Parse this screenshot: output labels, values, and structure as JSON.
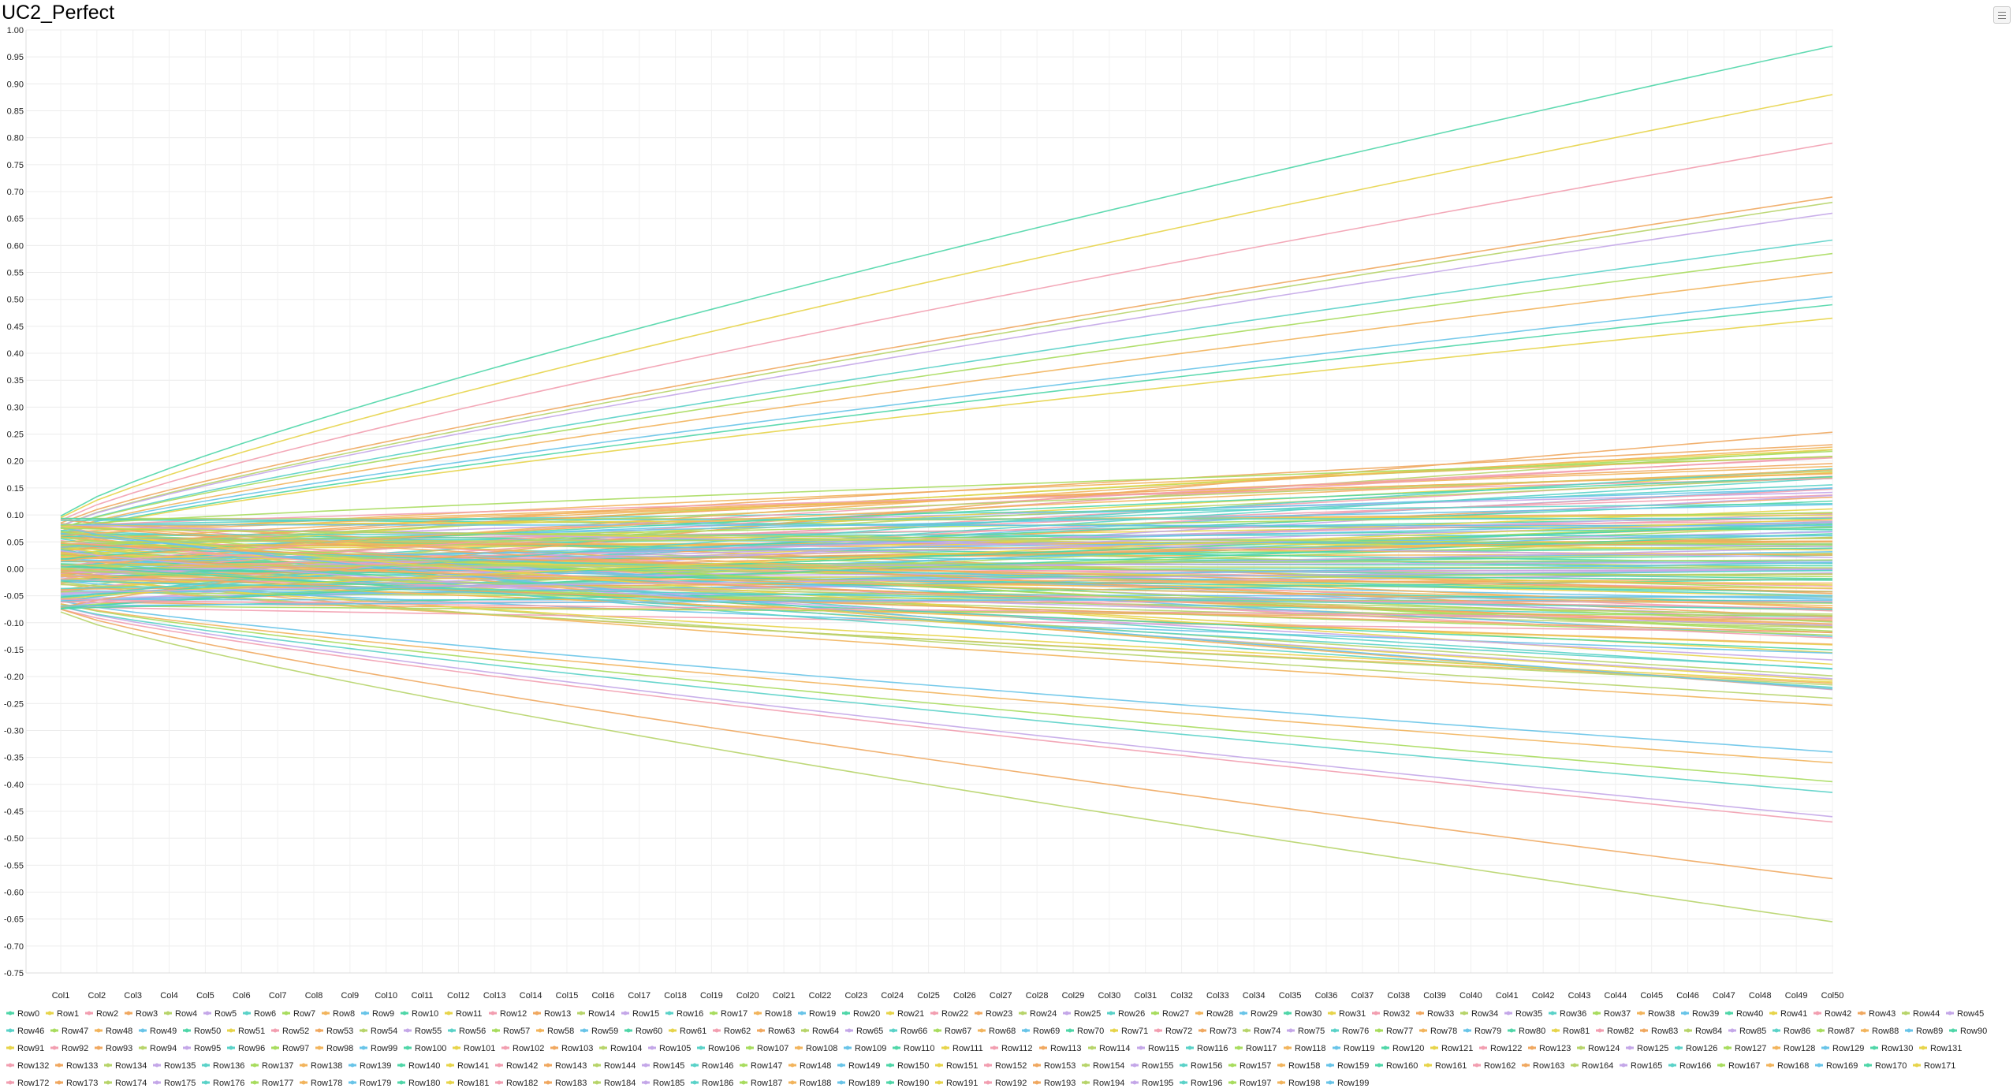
{
  "chart_data": {
    "type": "line",
    "title": "UC2_Perfect",
    "xlabel": "",
    "ylabel": "",
    "ylim": [
      -0.75,
      1.0
    ],
    "ytick_step": 0.05,
    "grid": true,
    "legend": "bottom",
    "x": [
      "Col1",
      "Col2",
      "Col3",
      "Col4",
      "Col5",
      "Col6",
      "Col7",
      "Col8",
      "Col9",
      "Col10",
      "Col11",
      "Col12",
      "Col13",
      "Col14",
      "Col15",
      "Col16",
      "Col17",
      "Col18",
      "Col19",
      "Col20",
      "Col21",
      "Col22",
      "Col23",
      "Col24",
      "Col25",
      "Col26",
      "Col27",
      "Col28",
      "Col29",
      "Col30",
      "Col31",
      "Col32",
      "Col33",
      "Col34",
      "Col35",
      "Col36",
      "Col37",
      "Col38",
      "Col39",
      "Col40",
      "Col41",
      "Col42",
      "Col43",
      "Col44",
      "Col45",
      "Col46",
      "Col47",
      "Col48",
      "Col49",
      "Col50"
    ],
    "series_count": 200,
    "series_name_prefix": "Row",
    "palette": [
      "#4fd6a8",
      "#e7d44a",
      "#f29eb0",
      "#f0a860",
      "#b7d46a",
      "#c4a7e8",
      "#5ad2c8",
      "#a8dc5e",
      "#f2b45c",
      "#68c4e8"
    ],
    "highlight_series": [
      {
        "name": "Row0",
        "start": 0.098,
        "end": 0.97
      },
      {
        "name": "Row1",
        "start": 0.095,
        "end": 0.88
      },
      {
        "name": "Row2",
        "start": 0.09,
        "end": 0.79
      },
      {
        "name": "Row3",
        "start": 0.085,
        "end": 0.69
      },
      {
        "name": "Row4",
        "start": 0.08,
        "end": 0.68
      },
      {
        "name": "Row5",
        "start": 0.08,
        "end": 0.66
      },
      {
        "name": "Row6",
        "start": 0.075,
        "end": 0.61
      },
      {
        "name": "Row7",
        "start": 0.075,
        "end": 0.585
      },
      {
        "name": "Row8",
        "start": 0.07,
        "end": 0.55
      },
      {
        "name": "Row9",
        "start": 0.07,
        "end": 0.505
      },
      {
        "name": "Row10",
        "start": 0.065,
        "end": 0.49
      },
      {
        "name": "Row11",
        "start": 0.065,
        "end": 0.465
      },
      {
        "name": "Row12",
        "start": -0.075,
        "end": -0.47
      },
      {
        "name": "Row13",
        "start": -0.075,
        "end": -0.575
      },
      {
        "name": "Row14",
        "start": -0.08,
        "end": -0.655
      },
      {
        "name": "Row15",
        "start": -0.07,
        "end": -0.46
      },
      {
        "name": "Row16",
        "start": -0.07,
        "end": -0.415
      },
      {
        "name": "Row17",
        "start": -0.065,
        "end": -0.395
      },
      {
        "name": "Row18",
        "start": -0.065,
        "end": -0.36
      },
      {
        "name": "Row19",
        "start": -0.06,
        "end": -0.34
      }
    ]
  }
}
